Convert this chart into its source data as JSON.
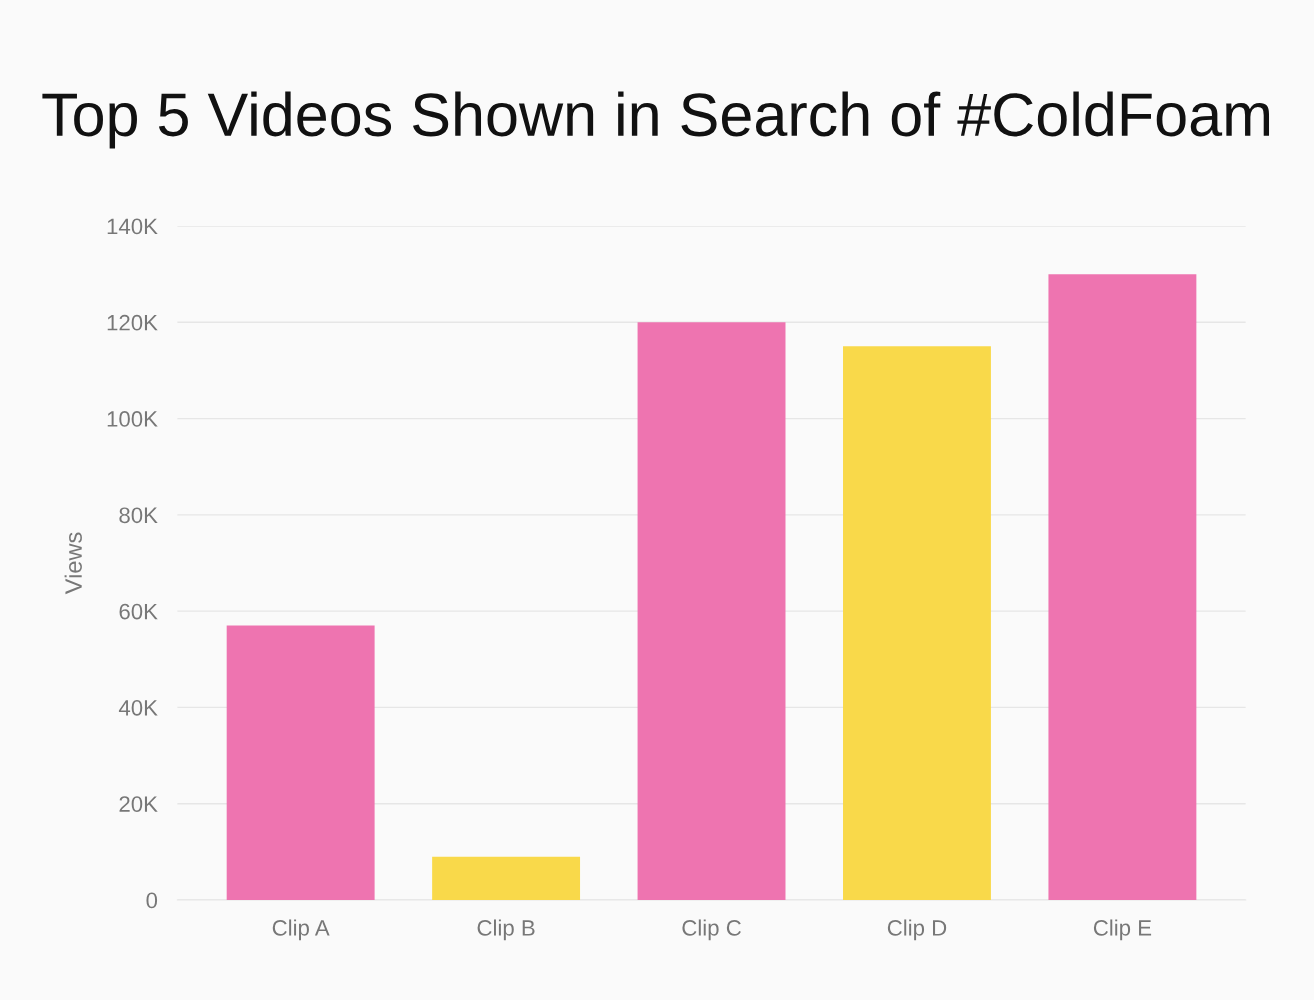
{
  "chart_data": {
    "type": "bar",
    "title": "Top 5 Videos Shown in Search of #ColdFoam",
    "ylabel": "Views",
    "categories": [
      "Clip A",
      "Clip B",
      "Clip C",
      "Clip D",
      "Clip E"
    ],
    "values": [
      57000,
      9000,
      120000,
      115000,
      130000
    ],
    "colors": [
      "#ee74b0",
      "#f9d94a",
      "#ee74b0",
      "#f9d94a",
      "#ee74b0"
    ],
    "ylim": [
      0,
      140000
    ],
    "yticks": [
      {
        "value": 0,
        "label": "0"
      },
      {
        "value": 20000,
        "label": "20K"
      },
      {
        "value": 40000,
        "label": "40K"
      },
      {
        "value": 60000,
        "label": "60K"
      },
      {
        "value": 80000,
        "label": "80K"
      },
      {
        "value": 100000,
        "label": "100K"
      },
      {
        "value": 120000,
        "label": "120K"
      },
      {
        "value": 140000,
        "label": "140K"
      }
    ],
    "grid": "y"
  }
}
